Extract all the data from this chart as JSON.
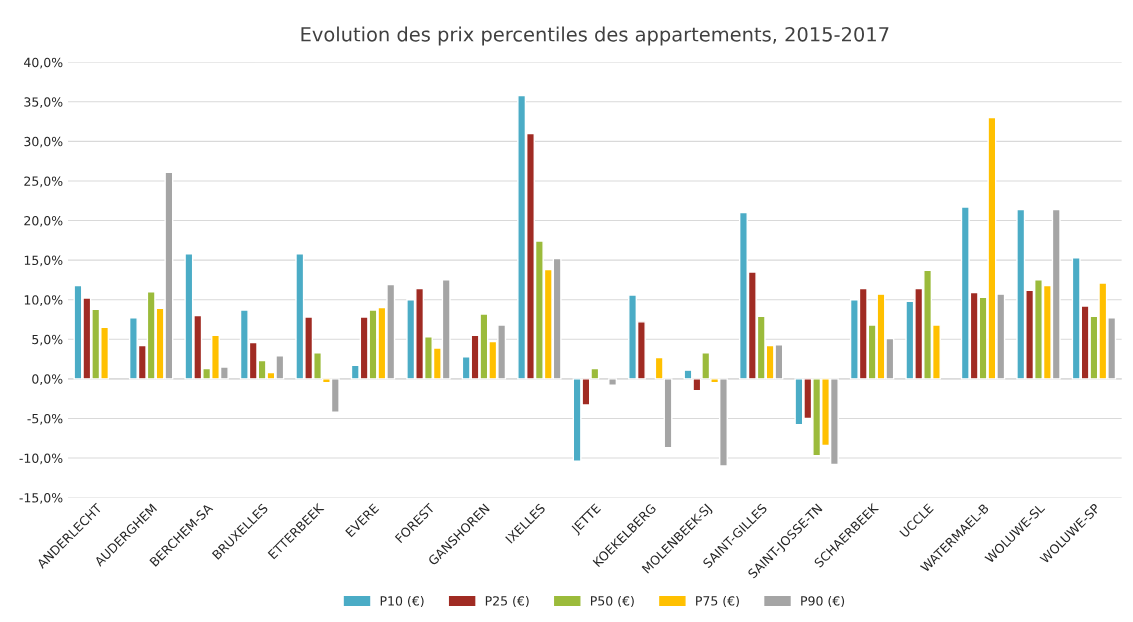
{
  "chart_data": {
    "type": "bar",
    "title": "Evolution des prix percentiles des appartements, 2015-2017",
    "categories": [
      "ANDERLECHT",
      "AUDERGHEM",
      "BERCHEM-SA",
      "BRUXELLES",
      "ETTERBEEK",
      "EVERE",
      "FOREST",
      "GANSHOREN",
      "IXELLES",
      "JETTE",
      "KOEKELBERG",
      "MOLENBEEK-SJ",
      "SAINT-GILLES",
      "SAINT-JOSSE-TN",
      "SCHAERBEEK",
      "UCCLE",
      "WATERMAEL-B",
      "WOLUWE-SL",
      "WOLUWE-SP"
    ],
    "series": [
      {
        "name": "P10 (€)",
        "color": "#4bacc6",
        "values": [
          11.8,
          7.7,
          15.8,
          8.7,
          15.8,
          1.7,
          10.0,
          2.8,
          35.8,
          -10.4,
          10.6,
          1.1,
          21.0,
          -5.8,
          10.0,
          9.8,
          21.7,
          21.4,
          15.3
        ]
      },
      {
        "name": "P25 (€)",
        "color": "#a02b23",
        "values": [
          10.2,
          4.2,
          8.0,
          4.6,
          7.8,
          7.8,
          11.4,
          5.5,
          31.0,
          -3.3,
          7.2,
          -1.5,
          13.5,
          -5.0,
          11.4,
          11.4,
          10.9,
          11.2,
          9.2
        ]
      },
      {
        "name": "P50 (€)",
        "color": "#9bbb3b",
        "values": [
          8.8,
          11.0,
          1.3,
          2.3,
          3.3,
          8.7,
          5.3,
          8.2,
          17.4,
          1.3,
          null,
          3.3,
          7.9,
          -9.7,
          6.8,
          13.7,
          10.3,
          12.5,
          7.9
        ]
      },
      {
        "name": "P75 (€)",
        "color": "#ffc000",
        "values": [
          6.5,
          8.9,
          5.5,
          0.8,
          -0.5,
          9.0,
          3.9,
          4.7,
          13.8,
          null,
          2.7,
          -0.5,
          4.2,
          -8.4,
          10.7,
          6.8,
          33.0,
          11.8,
          12.1
        ]
      },
      {
        "name": "P90 (€)",
        "color": "#a5a5a5",
        "values": [
          null,
          26.1,
          1.5,
          2.9,
          -4.2,
          11.9,
          12.5,
          6.8,
          15.2,
          -0.8,
          -8.7,
          -11.0,
          4.3,
          -10.8,
          5.1,
          null,
          10.7,
          21.4,
          7.7
        ]
      }
    ],
    "ylim": [
      -15,
      40
    ],
    "yticks": [
      {
        "value": -15,
        "label": "-15,0%"
      },
      {
        "value": -10,
        "label": "-10,0%"
      },
      {
        "value": -5,
        "label": "-5,0%"
      },
      {
        "value": 0,
        "label": "0,0%"
      },
      {
        "value": 5,
        "label": "5,0%"
      },
      {
        "value": 10,
        "label": "10,0%"
      },
      {
        "value": 15,
        "label": "15,0%"
      },
      {
        "value": 20,
        "label": "20,0%"
      },
      {
        "value": 25,
        "label": "25,0%"
      },
      {
        "value": 30,
        "label": "30,0%"
      },
      {
        "value": 35,
        "label": "35,0%"
      },
      {
        "value": 40,
        "label": "40,0%"
      }
    ],
    "grid": "y",
    "legend": "bottom"
  }
}
